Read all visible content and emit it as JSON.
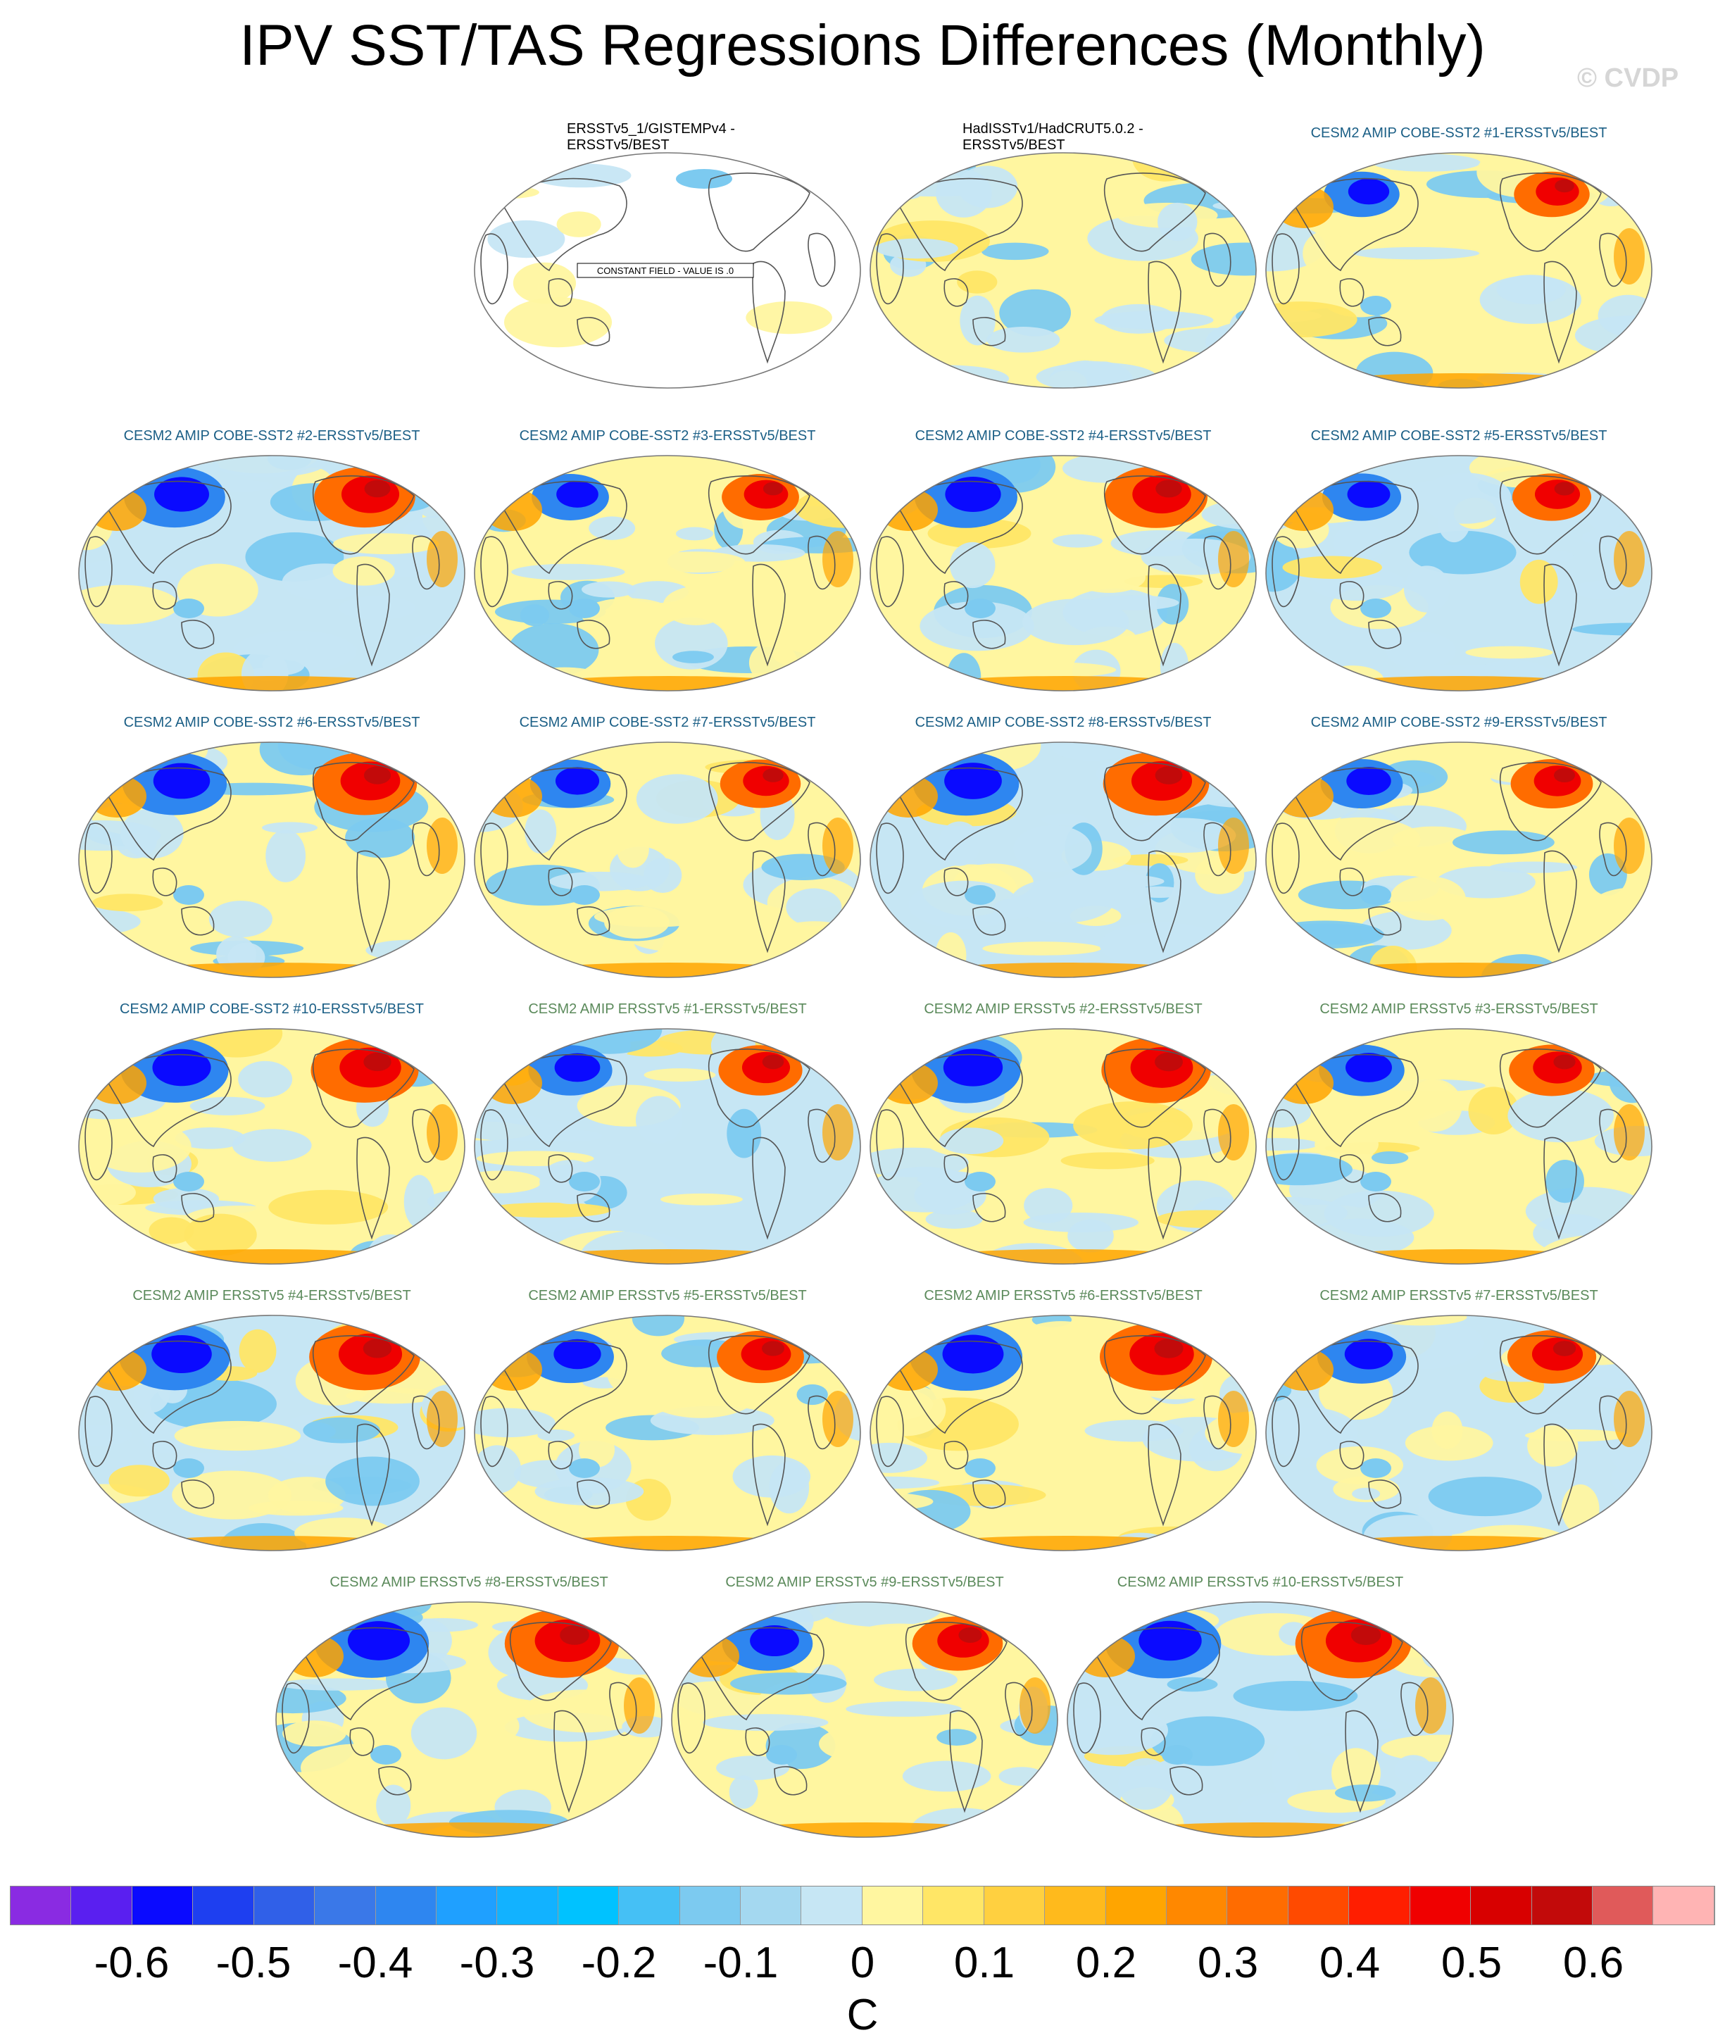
{
  "title": "IPV SST/TAS Regressions Differences (Monthly)",
  "watermark": "© CVDP",
  "colorbar": {
    "unit": "C",
    "tick_labels": [
      "-0.6",
      "-0.5",
      "-0.4",
      "-0.3",
      "-0.2",
      "-0.1",
      "0",
      "0.1",
      "0.2",
      "0.3",
      "0.4",
      "0.5",
      "0.6"
    ],
    "colors": [
      "#8a2be2",
      "#5a1ff0",
      "#0a0aff",
      "#1e3ff0",
      "#3060e8",
      "#3a78e8",
      "#2e86f0",
      "#1fa0ff",
      "#12b2ff",
      "#00c2ff",
      "#45c0f5",
      "#7ccaf0",
      "#a4d8f0",
      "#c6e6f4",
      "#fff6a0",
      "#ffe666",
      "#ffd040",
      "#ffba1c",
      "#ffa500",
      "#ff8800",
      "#ff6c00",
      "#ff4a00",
      "#ff1e00",
      "#f00000",
      "#d80000",
      "#c20a0a",
      "#e05a5a",
      "#ffb4b4"
    ]
  },
  "panels": [
    {
      "title": "ERSSTv5_1/GISTEMPv4 -\nERSSTv5/BEST",
      "style": "obs",
      "note": "CONSTANT FIELD - VALUE IS .0"
    },
    {
      "title": "HadISSTv1/HadCRUT5.0.2 -\nERSSTv5/BEST",
      "style": "obs"
    },
    {
      "title": "CESM2 AMIP COBE-SST2 #1-ERSSTv5/BEST",
      "style": "cobe"
    },
    {
      "title": "CESM2 AMIP COBE-SST2 #2-ERSSTv5/BEST",
      "style": "cobe"
    },
    {
      "title": "CESM2 AMIP COBE-SST2 #3-ERSSTv5/BEST",
      "style": "cobe"
    },
    {
      "title": "CESM2 AMIP COBE-SST2 #4-ERSSTv5/BEST",
      "style": "cobe"
    },
    {
      "title": "CESM2 AMIP COBE-SST2 #5-ERSSTv5/BEST",
      "style": "cobe"
    },
    {
      "title": "CESM2 AMIP COBE-SST2 #6-ERSSTv5/BEST",
      "style": "cobe"
    },
    {
      "title": "CESM2 AMIP COBE-SST2 #7-ERSSTv5/BEST",
      "style": "cobe"
    },
    {
      "title": "CESM2 AMIP COBE-SST2 #8-ERSSTv5/BEST",
      "style": "cobe"
    },
    {
      "title": "CESM2 AMIP COBE-SST2 #9-ERSSTv5/BEST",
      "style": "cobe"
    },
    {
      "title": "CESM2 AMIP COBE-SST2 #10-ERSSTv5/BEST",
      "style": "cobe"
    },
    {
      "title": "CESM2 AMIP ERSSTv5 #1-ERSSTv5/BEST",
      "style": "ersst"
    },
    {
      "title": "CESM2 AMIP ERSSTv5 #2-ERSSTv5/BEST",
      "style": "ersst"
    },
    {
      "title": "CESM2 AMIP ERSSTv5 #3-ERSSTv5/BEST",
      "style": "ersst"
    },
    {
      "title": "CESM2 AMIP ERSSTv5 #4-ERSSTv5/BEST",
      "style": "ersst"
    },
    {
      "title": "CESM2 AMIP ERSSTv5 #5-ERSSTv5/BEST",
      "style": "ersst"
    },
    {
      "title": "CESM2 AMIP ERSSTv5 #6-ERSSTv5/BEST",
      "style": "ersst"
    },
    {
      "title": "CESM2 AMIP ERSSTv5 #7-ERSSTv5/BEST",
      "style": "ersst"
    },
    {
      "title": "CESM2 AMIP ERSSTv5 #8-ERSSTv5/BEST",
      "style": "ersst"
    },
    {
      "title": "CESM2 AMIP ERSSTv5 #9-ERSSTv5/BEST",
      "style": "ersst"
    },
    {
      "title": "CESM2 AMIP ERSSTv5 #10-ERSSTv5/BEST",
      "style": "ersst"
    }
  ],
  "title_colors": {
    "obs": "#000000",
    "cobe": "#1b5f86",
    "ersst": "#5b8a5b"
  }
}
